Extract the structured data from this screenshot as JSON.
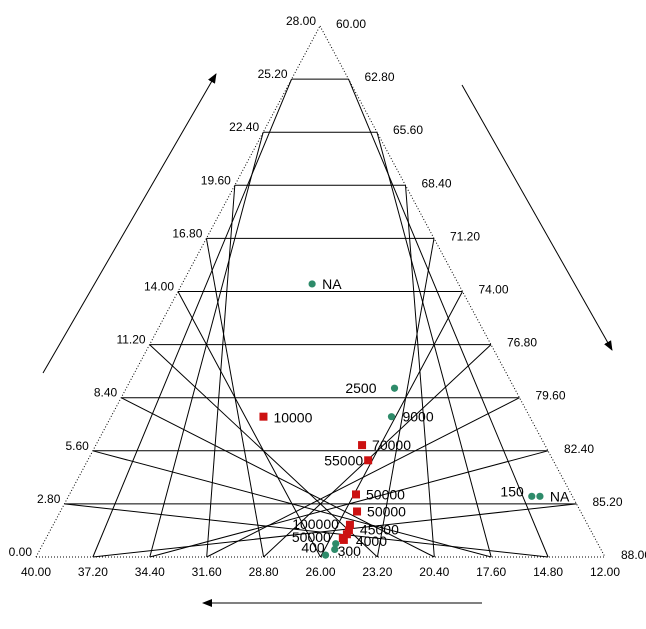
{
  "chart_data": {
    "type": "scatter",
    "subtype": "ternary",
    "grid": true,
    "axes": {
      "left": {
        "min": 0.0,
        "max": 28.0,
        "ticks": [
          "0.00",
          "2.80",
          "5.60",
          "8.40",
          "11.20",
          "14.00",
          "16.80",
          "19.60",
          "22.40",
          "25.20",
          "28.00"
        ]
      },
      "right": {
        "min": 60.0,
        "max": 88.0,
        "ticks": [
          "60.00",
          "62.80",
          "65.60",
          "68.40",
          "71.20",
          "74.00",
          "76.80",
          "79.60",
          "82.40",
          "85.20",
          "88.00"
        ]
      },
      "bottom": {
        "min": 12.0,
        "max": 40.0,
        "ticks": [
          "40.00",
          "37.20",
          "34.40",
          "31.60",
          "28.80",
          "26.00",
          "23.20",
          "20.40",
          "17.60",
          "14.80",
          "12.00"
        ]
      }
    },
    "arrows": [
      "up-right along left edge",
      "down-right along right edge",
      "leftward below base"
    ],
    "series": [
      {
        "marker": "circle",
        "color": "#2e8b6a",
        "points": [
          {
            "label": "NA",
            "a": 14.4,
            "b": 66.4,
            "c": 19.2
          },
          {
            "label": "2500",
            "a": 8.9,
            "b": 73.2,
            "c": 17.9
          },
          {
            "label": "9000",
            "a": 7.4,
            "b": 73.8,
            "c": 18.8
          },
          {
            "label": "150",
            "a": 3.2,
            "b": 82.8,
            "c": 14.0
          },
          {
            "label": "NA",
            "a": 3.2,
            "b": 83.2,
            "c": 13.6
          },
          {
            "label": "400",
            "a": 0.4,
            "b": 74.5,
            "c": 25.1
          },
          {
            "label": "300",
            "a": 0.1,
            "b": 74.2,
            "c": 25.7
          },
          {
            "label": "",
            "a": 0.7,
            "b": 74.4,
            "c": 24.9
          }
        ]
      },
      {
        "marker": "square",
        "color": "#cc1111",
        "points": [
          {
            "label": "10000",
            "a": 7.4,
            "b": 67.5,
            "c": 25.1
          },
          {
            "label": "70000",
            "a": 5.9,
            "b": 73.1,
            "c": 21.0
          },
          {
            "label": "55000",
            "a": 5.1,
            "b": 73.8,
            "c": 21.1
          },
          {
            "label": "50000",
            "a": 3.3,
            "b": 74.1,
            "c": 22.6
          },
          {
            "label": "50000",
            "a": 2.4,
            "b": 74.6,
            "c": 23.0
          },
          {
            "label": "100000",
            "a": 1.7,
            "b": 74.6,
            "c": 23.7
          },
          {
            "label": "45000",
            "a": 1.4,
            "b": 74.7,
            "c": 23.9
          },
          {
            "label": "50000",
            "a": 1.0,
            "b": 74.6,
            "c": 24.4
          },
          {
            "label": "4000",
            "a": 0.9,
            "b": 74.7,
            "c": 24.4
          },
          {
            "label": "",
            "a": 1.2,
            "b": 74.7,
            "c": 24.1
          }
        ]
      }
    ]
  }
}
